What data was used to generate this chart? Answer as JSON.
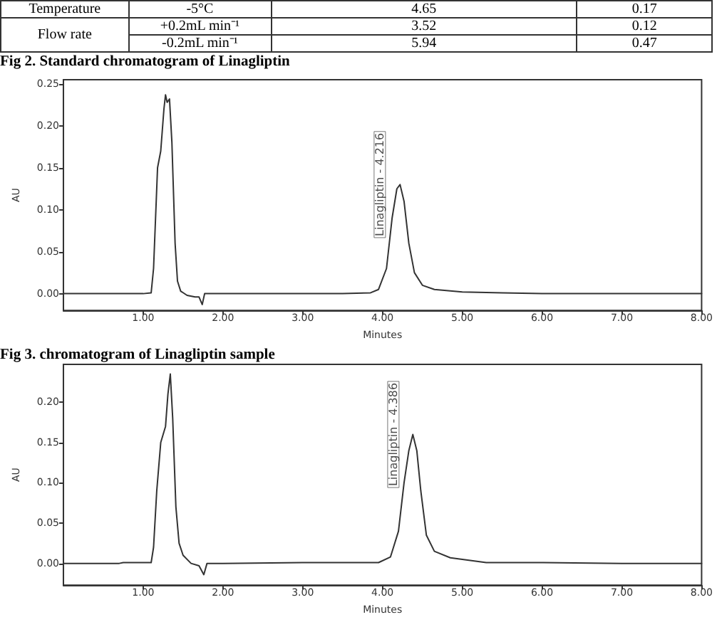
{
  "chart_data": [
    {
      "type": "other",
      "annotations": [
        "Temperature",
        "-5°C",
        "4.65",
        "0.17",
        "Flow rate",
        "+0.2mL min⁻¹",
        "3.52",
        "0.12",
        "-0.2mL min⁻¹",
        "5.94",
        "0.47"
      ]
    },
    {
      "type": "line",
      "title": "Fig 2. Standard chromatogram of Linagliptin",
      "xlabel": "Minutes",
      "ylabel": "AU",
      "xlim": [
        0,
        8
      ],
      "ylim": [
        -0.02,
        0.255
      ],
      "xticks": [
        {
          "value": 1,
          "label": "1.00"
        },
        {
          "value": 2,
          "label": "2.00"
        },
        {
          "value": 3,
          "label": "3.00"
        },
        {
          "value": 4,
          "label": "4.00"
        },
        {
          "value": 5,
          "label": "5.00"
        },
        {
          "value": 6,
          "label": "6.00"
        },
        {
          "value": 7,
          "label": "7.00"
        },
        {
          "value": 8,
          "label": "8.00"
        }
      ],
      "yticks": [
        {
          "value": 0,
          "label": "0.00"
        },
        {
          "value": 0.05,
          "label": "0.05"
        },
        {
          "value": 0.1,
          "label": "0.10"
        },
        {
          "value": 0.15,
          "label": "0.15"
        },
        {
          "value": 0.2,
          "label": "0.20"
        },
        {
          "value": 0.25,
          "label": "0.25"
        }
      ],
      "grid": false,
      "marker": "none",
      "line_style": "solid",
      "annotations": [
        {
          "text": "Linagliptin - 4.216",
          "x": 4.216,
          "y": 0.13
        }
      ],
      "series": [
        {
          "color": "#333333",
          "x": [
            0,
            0.5,
            1.0,
            1.1,
            1.13,
            1.18,
            1.22,
            1.26,
            1.28,
            1.3,
            1.33,
            1.36,
            1.4,
            1.43,
            1.47,
            1.55,
            1.65,
            1.7,
            1.74,
            1.77,
            1.85,
            2.5,
            3.5,
            3.85,
            3.95,
            4.05,
            4.12,
            4.18,
            4.22,
            4.27,
            4.33,
            4.4,
            4.5,
            4.65,
            5.0,
            5.5,
            6,
            7,
            8
          ],
          "values": [
            0,
            0,
            0,
            0.001,
            0.03,
            0.15,
            0.17,
            0.22,
            0.237,
            0.228,
            0.232,
            0.18,
            0.06,
            0.015,
            0.003,
            -0.002,
            -0.004,
            -0.004,
            -0.013,
            0,
            0,
            0,
            0,
            0.001,
            0.005,
            0.03,
            0.09,
            0.125,
            0.13,
            0.11,
            0.06,
            0.025,
            0.01,
            0.005,
            0.002,
            0.001,
            0,
            0,
            0
          ]
        }
      ]
    },
    {
      "type": "line",
      "title": "Fig 3. chromatogram of Linagliptin sample",
      "xlabel": "Minutes",
      "ylabel": "AU",
      "xlim": [
        0,
        8
      ],
      "ylim": [
        -0.027,
        0.247
      ],
      "xticks": [
        {
          "value": 1,
          "label": "1.00"
        },
        {
          "value": 2,
          "label": "2.00"
        },
        {
          "value": 3,
          "label": "3.00"
        },
        {
          "value": 4,
          "label": "4.00"
        },
        {
          "value": 5,
          "label": "5.00"
        },
        {
          "value": 6,
          "label": "6.00"
        },
        {
          "value": 7,
          "label": "7.00"
        },
        {
          "value": 8,
          "label": "8.00"
        }
      ],
      "yticks": [
        {
          "value": 0,
          "label": "0.00"
        },
        {
          "value": 0.05,
          "label": "0.05"
        },
        {
          "value": 0.1,
          "label": "0.10"
        },
        {
          "value": 0.15,
          "label": "0.15"
        },
        {
          "value": 0.2,
          "label": "0.20"
        }
      ],
      "grid": false,
      "marker": "none",
      "line_style": "solid",
      "annotations": [
        {
          "text": "Linagliptin - 4.386",
          "x": 4.386,
          "y": 0.16
        }
      ],
      "series": [
        {
          "color": "#333333",
          "x": [
            0,
            0.7,
            0.75,
            1.1,
            1.13,
            1.17,
            1.22,
            1.28,
            1.31,
            1.34,
            1.37,
            1.41,
            1.45,
            1.5,
            1.6,
            1.7,
            1.76,
            1.8,
            2.0,
            3.0,
            3.95,
            4.1,
            4.2,
            4.27,
            4.33,
            4.38,
            4.43,
            4.48,
            4.55,
            4.65,
            4.85,
            5.3,
            6,
            7,
            8
          ],
          "values": [
            0,
            0,
            0.001,
            0.001,
            0.02,
            0.09,
            0.15,
            0.17,
            0.21,
            0.235,
            0.18,
            0.07,
            0.025,
            0.01,
            0,
            -0.003,
            -0.014,
            0,
            0,
            0.001,
            0.001,
            0.008,
            0.04,
            0.1,
            0.14,
            0.16,
            0.14,
            0.09,
            0.035,
            0.015,
            0.007,
            0.001,
            0.001,
            0,
            0
          ]
        }
      ]
    }
  ]
}
